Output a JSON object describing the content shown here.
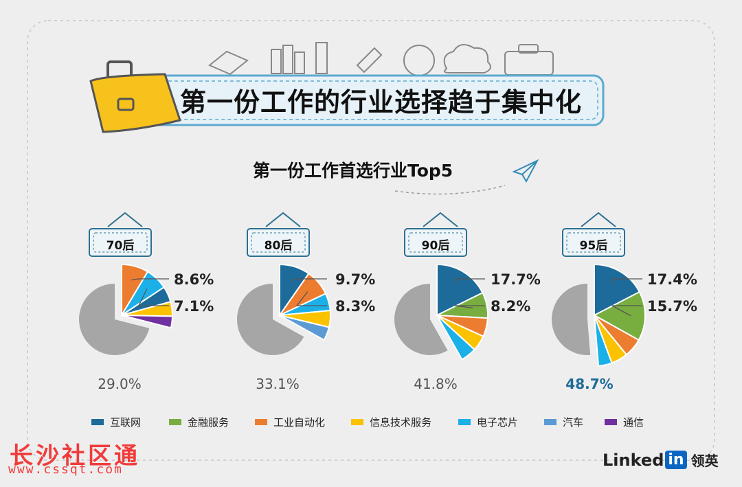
{
  "header": {
    "title": "第一份工作的行业选择趋于集中化"
  },
  "subtitle": "第一份工作首选行业Top5",
  "colors": {
    "互联网": "#1c6b9a",
    "金融服务": "#78ad3f",
    "工业自动化": "#ec7c30",
    "信息技术服务": "#fbc200",
    "电子芯片": "#1cb0e8",
    "汽车": "#5b9bd5",
    "通信": "#7030a0",
    "rest": "#a6a6a6"
  },
  "legend": [
    "互联网",
    "金融服务",
    "工业自动化",
    "信息技术服务",
    "电子芯片",
    "汽车",
    "通信"
  ],
  "chart_data": [
    {
      "type": "pie",
      "title": "70后",
      "top5_total": "29.0%",
      "labels": [
        "8.6%",
        "7.1%"
      ],
      "slices": [
        {
          "name": "工业自动化",
          "value": 8.6
        },
        {
          "name": "电子芯片",
          "value": 7.1
        },
        {
          "name": "互联网",
          "value": 5.0
        },
        {
          "name": "信息技术服务",
          "value": 4.6
        },
        {
          "name": "通信",
          "value": 3.7
        }
      ]
    },
    {
      "type": "pie",
      "title": "80后",
      "top5_total": "33.1%",
      "labels": [
        "9.7%",
        "8.3%"
      ],
      "slices": [
        {
          "name": "互联网",
          "value": 9.7
        },
        {
          "name": "工业自动化",
          "value": 8.3
        },
        {
          "name": "电子芯片",
          "value": 5.5
        },
        {
          "name": "信息技术服务",
          "value": 5.3
        },
        {
          "name": "汽车",
          "value": 4.3
        }
      ]
    },
    {
      "type": "pie",
      "title": "90后",
      "top5_total": "41.8%",
      "labels": [
        "17.7%",
        "8.2%"
      ],
      "slices": [
        {
          "name": "互联网",
          "value": 17.7
        },
        {
          "name": "金融服务",
          "value": 8.2
        },
        {
          "name": "工业自动化",
          "value": 5.9
        },
        {
          "name": "信息技术服务",
          "value": 5.0
        },
        {
          "name": "电子芯片",
          "value": 5.0
        }
      ]
    },
    {
      "type": "pie",
      "title": "95后",
      "top5_total": "48.7%",
      "labels": [
        "17.4%",
        "15.7%"
      ],
      "slices": [
        {
          "name": "互联网",
          "value": 17.4
        },
        {
          "name": "金融服务",
          "value": 15.7
        },
        {
          "name": "工业自动化",
          "value": 6.0
        },
        {
          "name": "信息技术服务",
          "value": 5.3
        },
        {
          "name": "电子芯片",
          "value": 4.3
        }
      ]
    }
  ],
  "watermark": {
    "text": "长沙社区通",
    "url": "www.cssqt.com"
  },
  "brand": {
    "name": "Linked",
    "in": "in",
    "cn": "领英"
  }
}
